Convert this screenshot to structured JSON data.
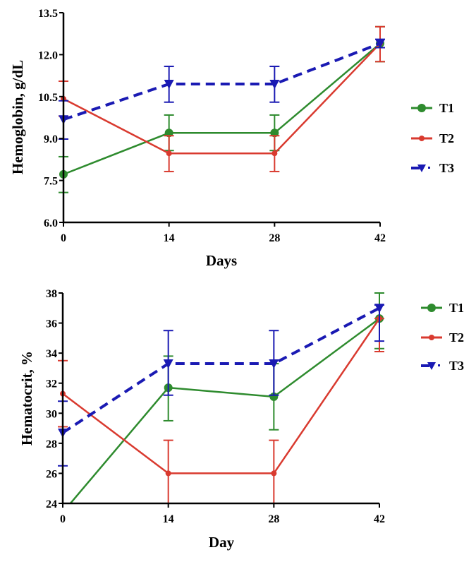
{
  "chart_data": [
    {
      "type": "line",
      "title": "",
      "xlabel": "Days",
      "ylabel": "Hemoglobin, g/dL",
      "x": [
        0,
        14,
        28,
        42
      ],
      "xticks": [
        "0",
        "14",
        "28",
        "42"
      ],
      "xlim": [
        0,
        42
      ],
      "ylim": [
        6.0,
        13.5
      ],
      "yticks": [
        "6.0",
        "7.5",
        "9.0",
        "10.5",
        "12.0",
        "13.5"
      ],
      "ytick_values": [
        6.0,
        7.5,
        9.0,
        10.5,
        12.0,
        13.5
      ],
      "grid": false,
      "legend_position": "right",
      "series": [
        {
          "name": "T1",
          "color": "#2e8b2e",
          "marker": "circle",
          "dash": false,
          "values": [
            7.72,
            9.2,
            9.2,
            12.4
          ],
          "err_hi": [
            8.35,
            9.84,
            9.84,
            13.0
          ],
          "err_lo": [
            7.07,
            8.57,
            8.57,
            11.75
          ]
        },
        {
          "name": "T2",
          "color": "#d93a2f",
          "marker": "diamond",
          "dash": false,
          "values": [
            10.42,
            8.47,
            8.47,
            12.4
          ],
          "err_hi": [
            11.05,
            9.1,
            9.1,
            13.0
          ],
          "err_lo": [
            9.8,
            7.82,
            7.82,
            11.75
          ]
        },
        {
          "name": "T3",
          "color": "#1a1ab3",
          "marker": "triangle-down",
          "dash": true,
          "values": [
            9.68,
            10.95,
            10.95,
            12.4
          ],
          "err_hi": [
            10.35,
            11.58,
            11.58,
            12.55
          ],
          "err_lo": [
            8.98,
            10.3,
            10.3,
            12.25
          ]
        }
      ]
    },
    {
      "type": "line",
      "title": "",
      "xlabel": "Day",
      "ylabel": "Hematocrit, %",
      "x": [
        0,
        14,
        28,
        42
      ],
      "xticks": [
        "0",
        "14",
        "28",
        "42"
      ],
      "xlim": [
        0,
        42
      ],
      "ylim": [
        24,
        38
      ],
      "yticks": [
        "24",
        "26",
        "28",
        "30",
        "32",
        "34",
        "36",
        "38"
      ],
      "ytick_values": [
        24,
        26,
        28,
        30,
        32,
        34,
        36,
        38
      ],
      "grid": false,
      "legend_position": "right",
      "series": [
        {
          "name": "T1",
          "color": "#2e8b2e",
          "marker": "circle",
          "dash": false,
          "values": [
            23.4,
            31.7,
            31.1,
            36.3
          ],
          "err_hi": [
            null,
            33.8,
            33.3,
            38.0
          ],
          "err_lo": [
            null,
            29.5,
            28.9,
            34.3
          ]
        },
        {
          "name": "T2",
          "color": "#d93a2f",
          "marker": "diamond",
          "dash": false,
          "values": [
            31.3,
            26.0,
            26.0,
            36.3
          ],
          "err_hi": [
            33.5,
            28.2,
            28.2,
            36.3
          ],
          "err_lo": [
            29.1,
            23.8,
            23.8,
            34.1
          ]
        },
        {
          "name": "T3",
          "color": "#1a1ab3",
          "marker": "triangle-down",
          "dash": true,
          "values": [
            28.7,
            33.3,
            33.3,
            37.0
          ],
          "err_hi": [
            30.8,
            35.5,
            35.5,
            37.2
          ],
          "err_lo": [
            26.5,
            31.2,
            31.2,
            34.8
          ]
        }
      ]
    }
  ]
}
